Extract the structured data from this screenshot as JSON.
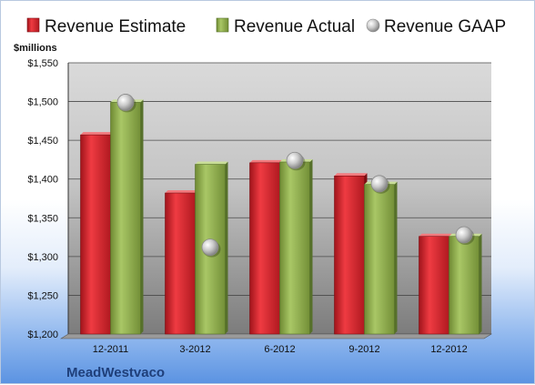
{
  "chart_data": {
    "type": "bar",
    "company": "MeadWestvaco",
    "unit_label": "$millions",
    "categories": [
      "12-2011",
      "3-2012",
      "6-2012",
      "9-2012",
      "12-2012"
    ],
    "series": [
      {
        "name": "Revenue Estimate",
        "type": "bar",
        "color": "#d3202a",
        "values": [
          1457,
          1382,
          1421,
          1404,
          1326
        ]
      },
      {
        "name": "Revenue Actual",
        "type": "bar",
        "color": "#8fae4a",
        "values": [
          1499,
          1419,
          1422,
          1393,
          1326
        ]
      },
      {
        "name": "Revenue GAAP",
        "type": "marker",
        "color": "#b8b8b8",
        "values": [
          1499,
          1312,
          1424,
          1394,
          1328
        ]
      }
    ],
    "ylim": [
      1200,
      1550
    ],
    "yticks": [
      1200,
      1250,
      1300,
      1350,
      1400,
      1450,
      1500,
      1550
    ],
    "ytick_labels": [
      "$1,200",
      "$1,250",
      "$1,300",
      "$1,350",
      "$1,400",
      "$1,450",
      "$1,500",
      "$1,550"
    ],
    "grid": true,
    "legend_position": "top"
  }
}
